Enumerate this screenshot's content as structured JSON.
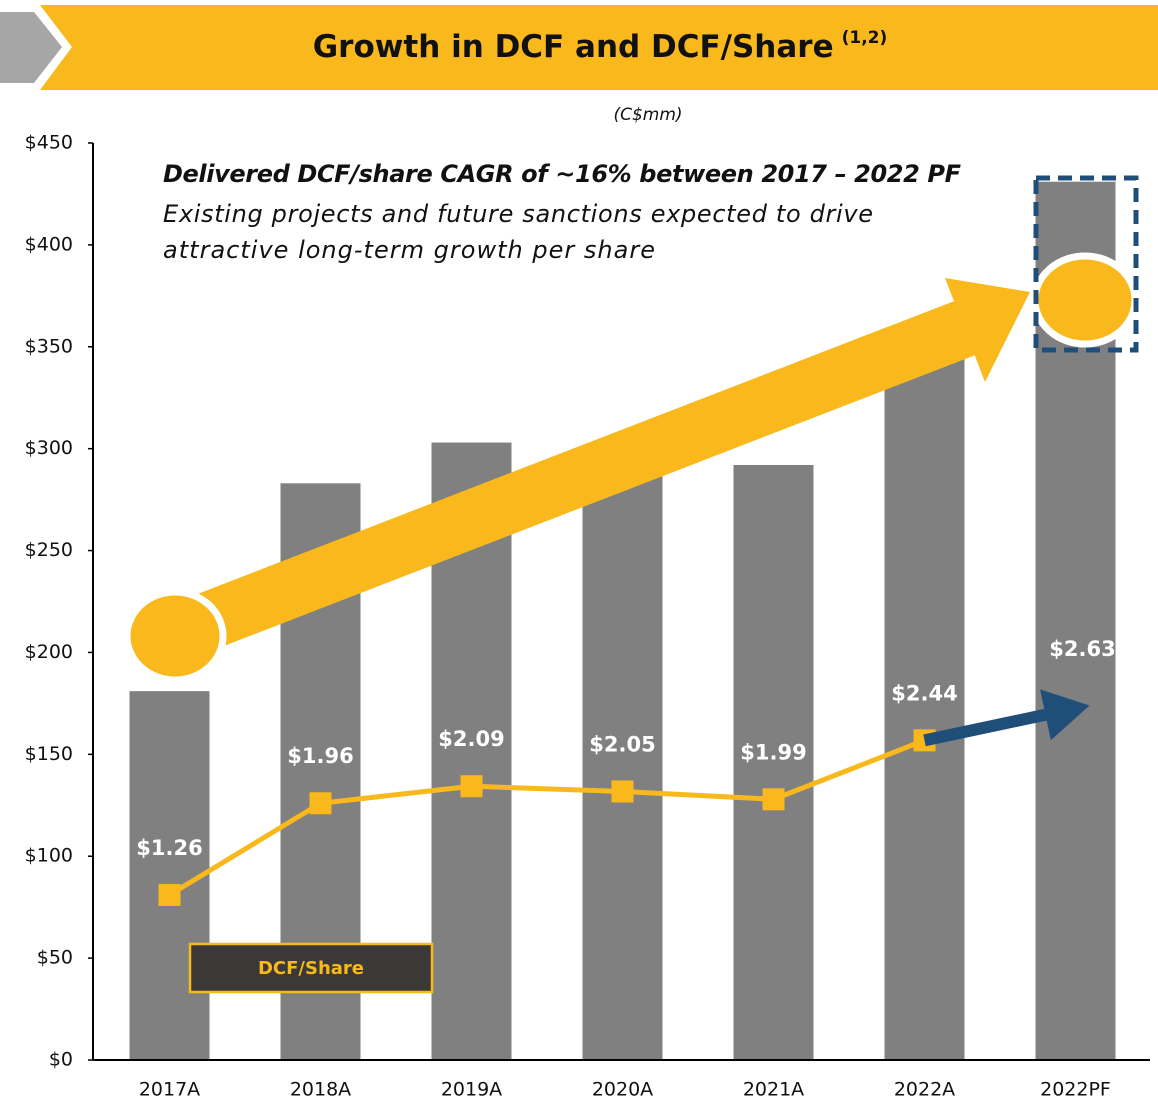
{
  "chart_data": {
    "type": "bar",
    "title": "Growth in DCF and DCF/Share",
    "title_note": "(1,2)",
    "subtitle": "(C$mm)",
    "annotations": [
      "Delivered DCF/share CAGR of ~16% between 2017 – 2022 PF",
      "Existing projects and future sanctions expected to drive",
      "attractive long-term growth per share"
    ],
    "categories": [
      "2017A",
      "2018A",
      "2019A",
      "2020A",
      "2021A",
      "2022A",
      "2022PF"
    ],
    "series": [
      {
        "name": "DCF",
        "color": "#808080",
        "values": [
          181,
          283,
          303,
          300,
          292,
          357,
          431
        ]
      },
      {
        "name": "DCF/Share",
        "color": "#f9b81b",
        "type": "line",
        "axis": "y2",
        "values": [
          1.26,
          1.96,
          2.09,
          2.05,
          1.99,
          2.44,
          2.63
        ],
        "value_labels": [
          "$1.26",
          "$1.96",
          "$2.09",
          "$2.05",
          "$1.99",
          "$2.44",
          "$2.63"
        ]
      }
    ],
    "ylim": [
      0,
      450
    ],
    "yticks": [
      {
        "value": 0,
        "label": "$0"
      },
      {
        "value": 50,
        "label": "$50"
      },
      {
        "value": 100,
        "label": "$100"
      },
      {
        "value": 150,
        "label": "$150"
      },
      {
        "value": 200,
        "label": "$200"
      },
      {
        "value": 250,
        "label": "$250"
      },
      {
        "value": 300,
        "label": "$300"
      },
      {
        "value": 350,
        "label": "$350"
      },
      {
        "value": 400,
        "label": "$400"
      },
      {
        "value": 450,
        "label": "$450"
      }
    ],
    "y2lim": [
      0,
      7
    ],
    "grid": false
  }
}
